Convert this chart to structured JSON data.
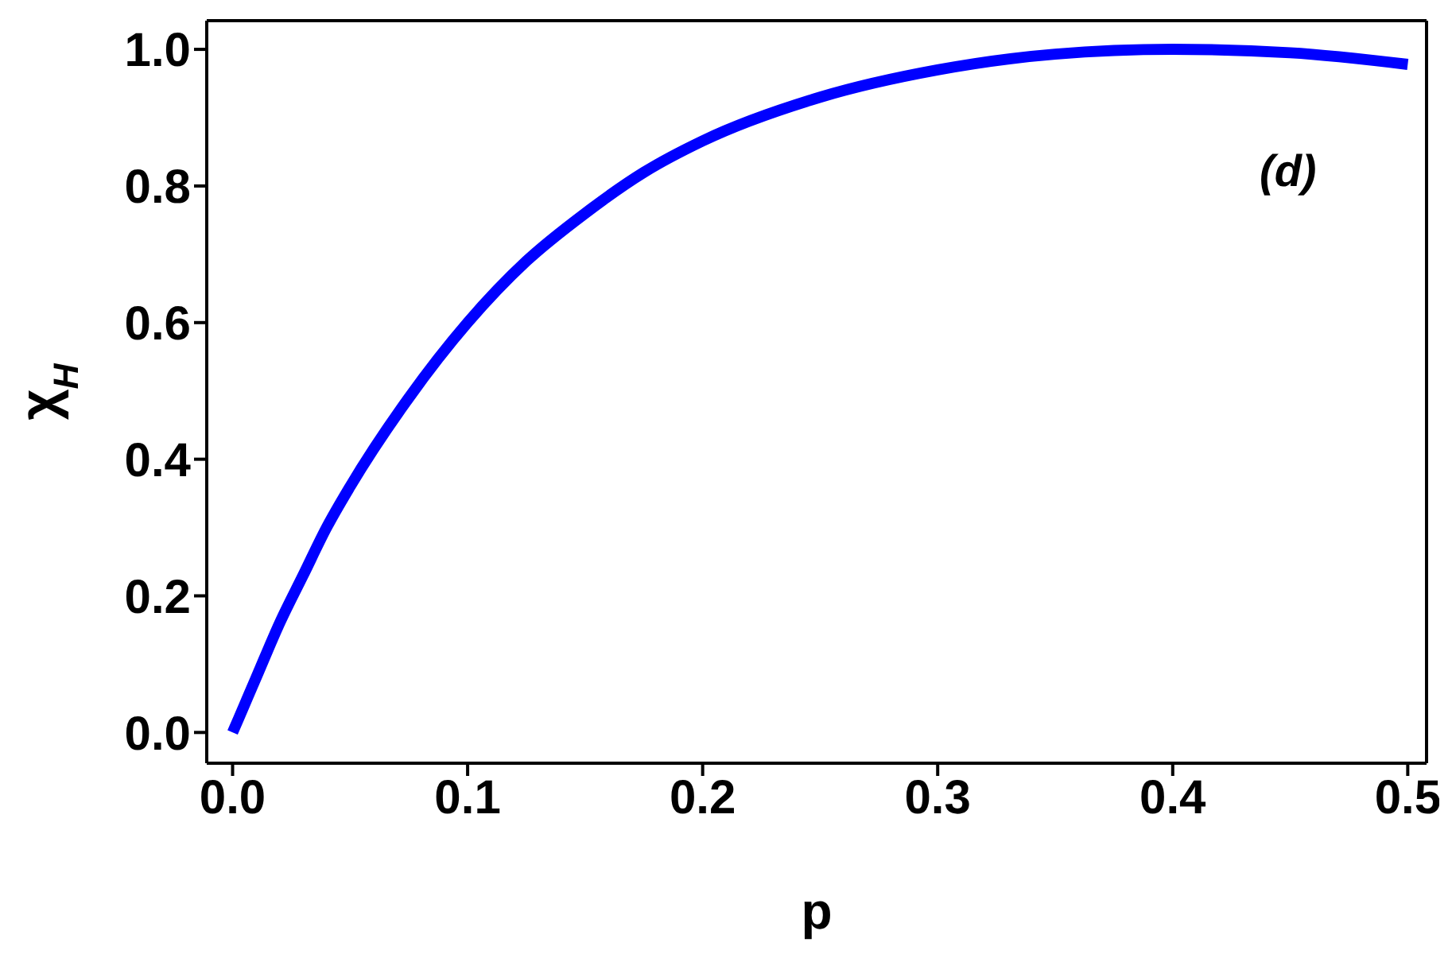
{
  "chart_data": {
    "type": "line",
    "xlabel": "p",
    "ylabel": "χ$_{H}$",
    "annotations": [
      "(d)"
    ],
    "x": [
      0,
      0.005,
      0.01,
      0.02,
      0.03,
      0.04,
      0.05,
      0.075,
      0.1,
      0.125,
      0.15,
      0.175,
      0.2,
      0.25,
      0.3,
      0.35,
      0.4,
      0.45,
      0.5
    ],
    "series": [
      {
        "color": "#0000ff",
        "values": [
          0,
          0.04,
          0.08,
          0.16,
          0.23,
          0.3,
          0.36,
          0.49,
          0.6,
          0.69,
          0.76,
          0.82,
          0.866,
          0.93,
          0.97,
          0.993,
          1.0,
          0.995,
          0.978
        ]
      }
    ],
    "xlim": [
      -0.011,
      0.508
    ],
    "ylim": [
      -0.045,
      1.042
    ],
    "xticks": [
      {
        "value": 0,
        "label": "0.0"
      },
      0.1,
      0.2,
      0.3,
      0.4,
      0.5
    ],
    "yticks": [
      {
        "value": 0,
        "label": "0.0"
      },
      0.2,
      0.4,
      0.6,
      0.8,
      {
        "value": 1,
        "label": "1.0"
      }
    ],
    "grid": false,
    "legend": false,
    "marker": "none",
    "line_style": "solid"
  }
}
